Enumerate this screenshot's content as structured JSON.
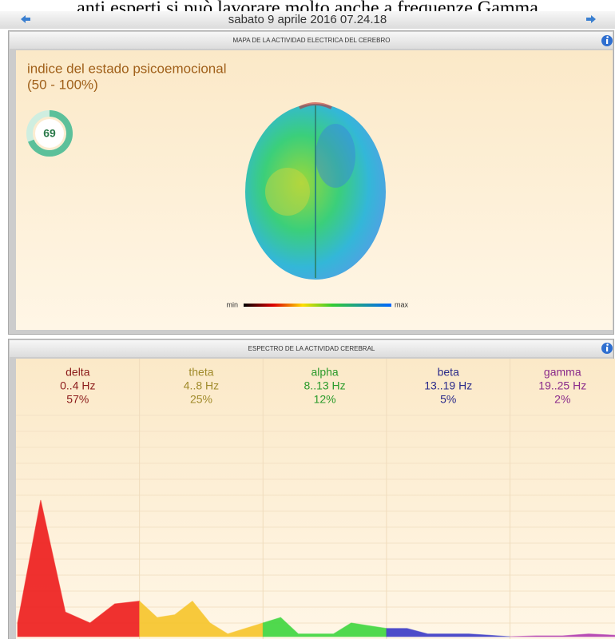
{
  "header": {
    "caption": "anti esperti si può lavorare molto anche a frequenze Gamma",
    "date": "sabato 9 aprile 2016 07.24.18"
  },
  "map_panel": {
    "title": "MAPA DE LA ACTIVIDAD ELECTRICA DEL CEREBRO",
    "index_label": "indice del estado psicoemocional",
    "index_range": "(50 - 100%)",
    "index_value": 69,
    "scale_min": "min",
    "scale_max": "max"
  },
  "spectrum_panel": {
    "title": "ESPECTRO DE LA ACTIVIDAD CEREBRAL",
    "ylim": [
      0,
      100
    ],
    "bands": [
      {
        "name": "delta",
        "range": "0..4 Hz",
        "percent": "57%",
        "color": "#8b1a1a",
        "fill": "#ee1c1c",
        "values": [
          5,
          50,
          9,
          5,
          12,
          13
        ]
      },
      {
        "name": "theta",
        "range": "4..8 Hz",
        "percent": "25%",
        "color": "#a08a2a",
        "fill": "#f7c52a",
        "values": [
          13,
          7,
          8,
          13,
          5,
          1,
          3,
          5
        ]
      },
      {
        "name": "alpha",
        "range": "8..13 Hz",
        "percent": "12%",
        "color": "#2a9a2a",
        "fill": "#3ed63e",
        "values": [
          5,
          7,
          1,
          1,
          1,
          5,
          4,
          3
        ]
      },
      {
        "name": "beta",
        "range": "13..19 Hz",
        "percent": "5%",
        "color": "#2a2a8a",
        "fill": "#3a3ac8",
        "values": [
          3,
          3,
          1,
          1,
          1,
          0.5,
          0
        ]
      },
      {
        "name": "gamma",
        "range": "19..25 Hz",
        "percent": "2%",
        "color": "#8a2a8a",
        "fill": "#b03ab0",
        "values": [
          0,
          0.3,
          0.3,
          1,
          0.5
        ]
      }
    ]
  }
}
